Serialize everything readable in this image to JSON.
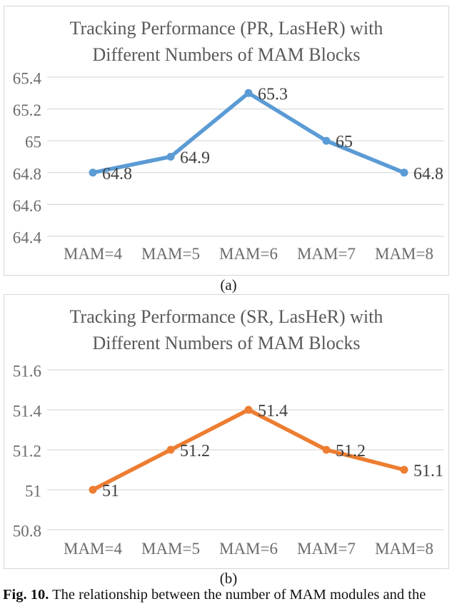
{
  "figure": {
    "panel_a_label": "(a)",
    "panel_b_label": "(b)",
    "caption_prefix": "Fig. 10.",
    "caption_text": "The relationship between the number of MAM modules and the",
    "colors": {
      "gridline": "#d9d9d9",
      "chart_border": "#d6d6d6",
      "title_text": "#595959",
      "axis_text": "#6b6b6b",
      "data_label_text": "#404040"
    }
  },
  "chart_data": [
    {
      "type": "line",
      "title": "Tracking Performance (PR, LasHeR) with Different Numbers of MAM Blocks",
      "title_lines": [
        "Tracking Performance (PR, LasHeR) with",
        "Different Numbers of MAM Blocks"
      ],
      "categories": [
        "MAM=4",
        "MAM=5",
        "MAM=6",
        "MAM=7",
        "MAM=8"
      ],
      "values": [
        64.8,
        64.9,
        65.3,
        65,
        64.8
      ],
      "data_labels": [
        "64.8",
        "64.9",
        "65.3",
        "65",
        "64.8"
      ],
      "yticks": [
        65.4,
        65.2,
        65,
        64.8,
        64.6,
        64.4
      ],
      "ytick_labels": [
        "65.4",
        "65.2",
        "65",
        "64.8",
        "64.6",
        "64.4"
      ],
      "ytick_step": 0.2,
      "ylim": [
        64.3,
        65.5
      ],
      "grid": true,
      "legend": "none",
      "line_color": "#5b9bd5"
    },
    {
      "type": "line",
      "title": "Tracking Performance (SR, LasHeR) with Different Numbers of MAM Blocks",
      "title_lines": [
        "Tracking Performance (SR, LasHeR) with",
        "Different Numbers of MAM Blocks"
      ],
      "categories": [
        "MAM=4",
        "MAM=5",
        "MAM=6",
        "MAM=7",
        "MAM=8"
      ],
      "values": [
        51,
        51.2,
        51.4,
        51.2,
        51.1
      ],
      "data_labels": [
        "51",
        "51.2",
        "51.4",
        "51.2",
        "51.1"
      ],
      "yticks": [
        51.6,
        51.4,
        51.2,
        51,
        50.8
      ],
      "ytick_labels": [
        "51.6",
        "51.4",
        "51.2",
        "51",
        "50.8"
      ],
      "ytick_step": 0.2,
      "ylim": [
        50.7,
        51.7
      ],
      "grid": true,
      "legend": "none",
      "line_color": "#ed7d31"
    }
  ]
}
